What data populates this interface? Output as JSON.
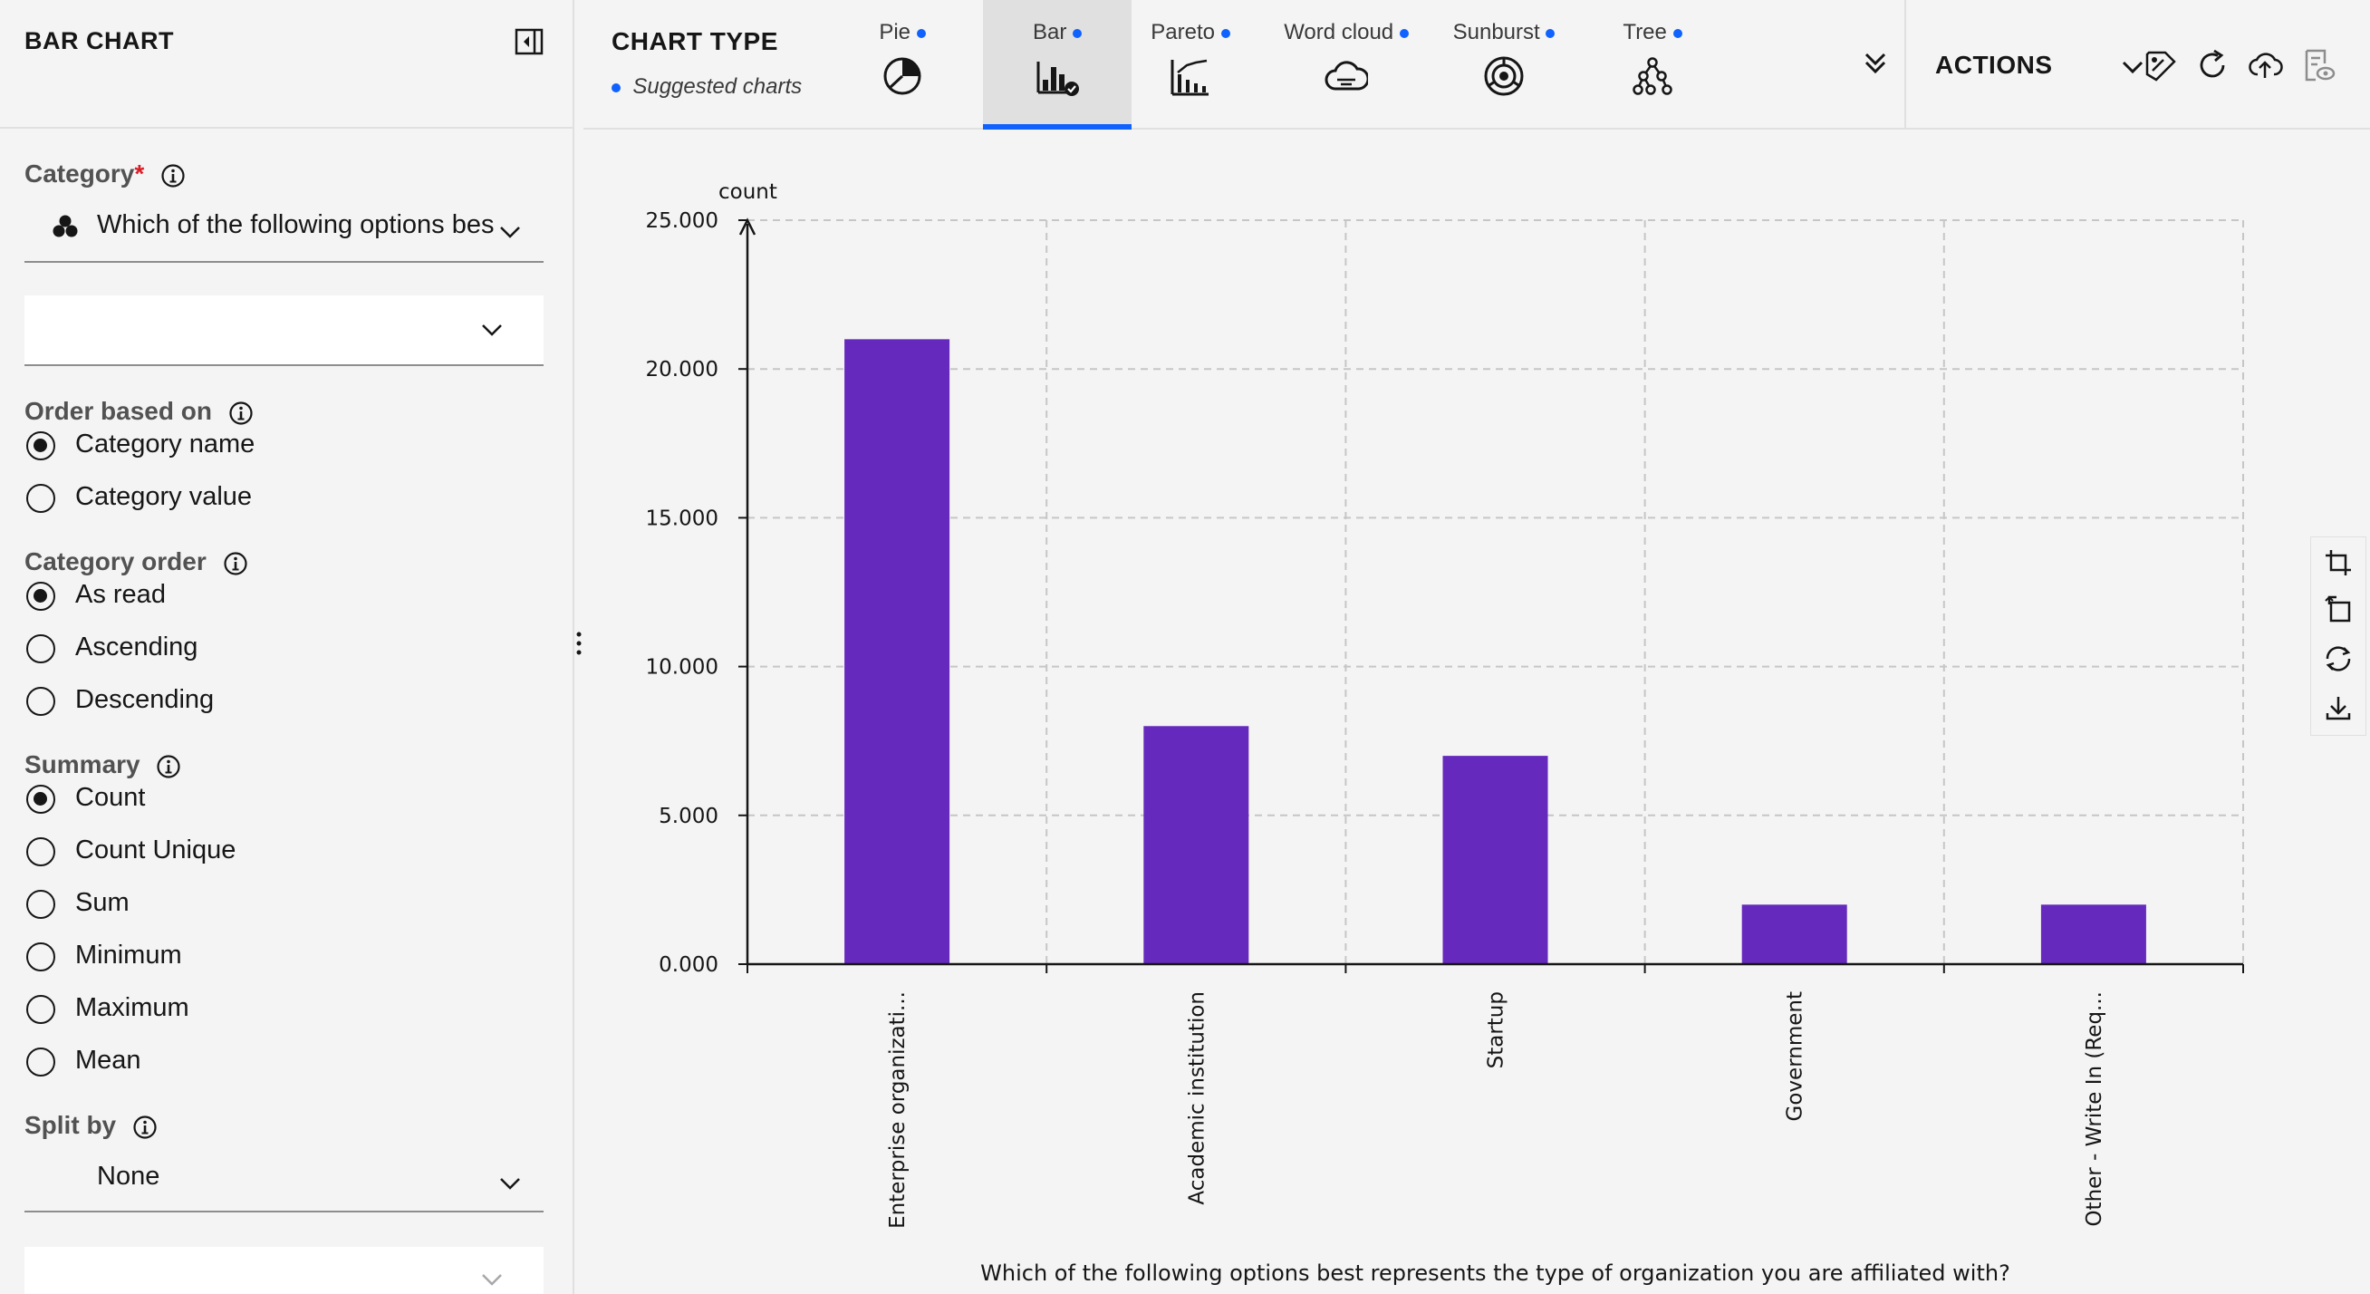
{
  "left_panel": {
    "title": "BAR CHART",
    "category": {
      "label": "Category",
      "required_marker": "*",
      "value": "Which of the following options bes"
    },
    "second_dropdown": {
      "value": ""
    },
    "order_based_on": {
      "label": "Order based on",
      "options": [
        {
          "label": "Category name",
          "selected": true
        },
        {
          "label": "Category value",
          "selected": false
        }
      ]
    },
    "category_order": {
      "label": "Category order",
      "options": [
        {
          "label": "As read",
          "selected": true
        },
        {
          "label": "Ascending",
          "selected": false
        },
        {
          "label": "Descending",
          "selected": false
        }
      ]
    },
    "summary": {
      "label": "Summary",
      "options": [
        {
          "label": "Count",
          "selected": true
        },
        {
          "label": "Count Unique",
          "selected": false
        },
        {
          "label": "Sum",
          "selected": false
        },
        {
          "label": "Minimum",
          "selected": false
        },
        {
          "label": "Maximum",
          "selected": false
        },
        {
          "label": "Mean",
          "selected": false
        }
      ]
    },
    "split_by": {
      "label": "Split by",
      "value": "None"
    }
  },
  "toolbar": {
    "title": "CHART TYPE",
    "subtitle": "Suggested charts",
    "tabs": [
      {
        "label": "Pie",
        "icon": "pie-chart-icon",
        "active": false
      },
      {
        "label": "Bar",
        "icon": "bar-chart-icon",
        "active": true
      },
      {
        "label": "Pareto",
        "icon": "pareto-chart-icon",
        "active": false
      },
      {
        "label": "Word cloud",
        "icon": "word-cloud-icon",
        "active": false
      },
      {
        "label": "Sunburst",
        "icon": "sunburst-icon",
        "active": false
      },
      {
        "label": "Tree",
        "icon": "tree-icon",
        "active": false
      }
    ],
    "actions_label": "ACTIONS"
  },
  "colors": {
    "bar": "#6529bd",
    "accent": "#0f62fe",
    "required": "#da1e28"
  },
  "chart_data": {
    "type": "bar",
    "categories": [
      "Enterprise organizati...",
      "Academic institution",
      "Startup",
      "Government",
      "Other - Write In (Req..."
    ],
    "values": [
      21,
      8,
      7,
      2,
      2
    ],
    "ylabel": "count",
    "xlabel": "Which of the following options best represents the type of organization you are affiliated with?",
    "ylim": [
      0,
      25
    ],
    "yticks": [
      "0.000",
      "5.000",
      "10.000",
      "15.000",
      "20.000",
      "25.000"
    ],
    "grid": true
  }
}
